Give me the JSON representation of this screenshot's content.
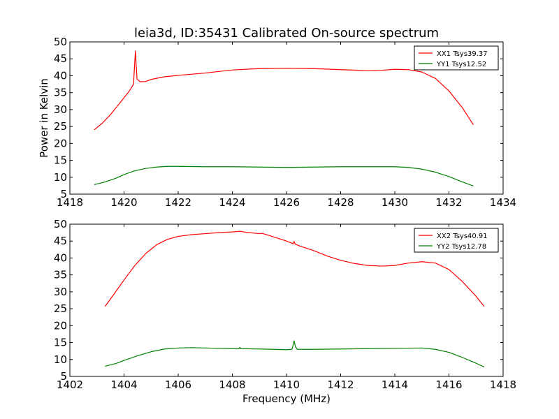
{
  "title": "leia3d, ID:35431 Calibrated On-source spectrum",
  "colors": {
    "xx": "#ff0000",
    "yy": "#007f00"
  },
  "chart_data": [
    {
      "type": "line",
      "xlabel": "",
      "ylabel": "Power in Kelvin",
      "xlim": [
        1418,
        1434
      ],
      "ylim": [
        5,
        50
      ],
      "xticks": [
        "1418",
        "1420",
        "1422",
        "1424",
        "1426",
        "1428",
        "1430",
        "1432",
        "1434"
      ],
      "yticks": [
        "5",
        "10",
        "15",
        "20",
        "25",
        "30",
        "35",
        "40",
        "45",
        "50"
      ],
      "legend_position": "top-right",
      "series": [
        {
          "name": "XX1 Tsys39.37",
          "color": "#ff0000",
          "points": [
            [
              1418.9,
              24.0
            ],
            [
              1419.2,
              26.0
            ],
            [
              1419.5,
              28.5
            ],
            [
              1419.8,
              31.5
            ],
            [
              1420.0,
              33.5
            ],
            [
              1420.2,
              35.5
            ],
            [
              1420.35,
              37.5
            ],
            [
              1420.42,
              47.3
            ],
            [
              1420.48,
              39.0
            ],
            [
              1420.6,
              38.2
            ],
            [
              1420.8,
              38.3
            ],
            [
              1421.0,
              38.9
            ],
            [
              1421.5,
              39.7
            ],
            [
              1422.0,
              40.1
            ],
            [
              1423.0,
              40.8
            ],
            [
              1424.0,
              41.7
            ],
            [
              1425.0,
              42.1
            ],
            [
              1426.0,
              42.2
            ],
            [
              1427.0,
              42.1
            ],
            [
              1428.0,
              41.8
            ],
            [
              1429.0,
              41.5
            ],
            [
              1429.5,
              41.6
            ],
            [
              1430.0,
              41.9
            ],
            [
              1430.5,
              41.8
            ],
            [
              1431.0,
              41.1
            ],
            [
              1431.5,
              39.2
            ],
            [
              1432.0,
              35.5
            ],
            [
              1432.5,
              30.5
            ],
            [
              1432.9,
              25.5
            ]
          ]
        },
        {
          "name": "YY1 Tsys12.52",
          "color": "#007f00",
          "points": [
            [
              1418.9,
              7.8
            ],
            [
              1419.3,
              8.6
            ],
            [
              1419.7,
              9.7
            ],
            [
              1420.0,
              10.8
            ],
            [
              1420.4,
              11.9
            ],
            [
              1420.8,
              12.6
            ],
            [
              1421.2,
              13.0
            ],
            [
              1421.6,
              13.2
            ],
            [
              1422.0,
              13.2
            ],
            [
              1423.0,
              13.1
            ],
            [
              1424.0,
              13.1
            ],
            [
              1425.0,
              13.0
            ],
            [
              1426.0,
              12.9
            ],
            [
              1427.0,
              13.0
            ],
            [
              1428.0,
              13.1
            ],
            [
              1429.0,
              13.1
            ],
            [
              1430.0,
              13.1
            ],
            [
              1430.5,
              12.9
            ],
            [
              1431.0,
              12.4
            ],
            [
              1431.5,
              11.5
            ],
            [
              1432.0,
              10.2
            ],
            [
              1432.5,
              8.6
            ],
            [
              1432.9,
              7.4
            ]
          ]
        }
      ]
    },
    {
      "type": "line",
      "xlabel": "Frequency (MHz)",
      "ylabel": "",
      "xlim": [
        1402,
        1418
      ],
      "ylim": [
        5,
        50
      ],
      "xticks": [
        "1402",
        "1404",
        "1406",
        "1408",
        "1410",
        "1412",
        "1414",
        "1416",
        "1418"
      ],
      "yticks": [
        "5",
        "10",
        "15",
        "20",
        "25",
        "30",
        "35",
        "40",
        "45",
        "50"
      ],
      "legend_position": "top-right",
      "series": [
        {
          "name": "XX2 Tsys40.91",
          "color": "#ff0000",
          "points": [
            [
              1403.3,
              25.7
            ],
            [
              1403.6,
              29.0
            ],
            [
              1404.0,
              33.5
            ],
            [
              1404.4,
              37.8
            ],
            [
              1404.8,
              41.3
            ],
            [
              1405.2,
              43.9
            ],
            [
              1405.6,
              45.5
            ],
            [
              1406.0,
              46.4
            ],
            [
              1406.5,
              46.9
            ],
            [
              1407.0,
              47.2
            ],
            [
              1407.5,
              47.5
            ],
            [
              1408.0,
              47.7
            ],
            [
              1408.3,
              47.9
            ],
            [
              1408.5,
              47.6
            ],
            [
              1409.0,
              47.2
            ],
            [
              1409.1,
              47.3
            ],
            [
              1409.5,
              46.3
            ],
            [
              1410.0,
              45.0
            ],
            [
              1410.25,
              44.2
            ],
            [
              1410.28,
              44.9
            ],
            [
              1410.32,
              44.1
            ],
            [
              1410.5,
              43.5
            ],
            [
              1411.0,
              42.2
            ],
            [
              1411.5,
              40.6
            ],
            [
              1412.0,
              39.3
            ],
            [
              1412.5,
              38.4
            ],
            [
              1413.0,
              37.8
            ],
            [
              1413.5,
              37.6
            ],
            [
              1414.0,
              37.8
            ],
            [
              1414.5,
              38.5
            ],
            [
              1415.0,
              38.9
            ],
            [
              1415.5,
              38.5
            ],
            [
              1416.0,
              36.6
            ],
            [
              1416.5,
              33.0
            ],
            [
              1417.0,
              28.7
            ],
            [
              1417.3,
              25.7
            ]
          ]
        },
        {
          "name": "YY2 Tsys12.78",
          "color": "#007f00",
          "points": [
            [
              1403.3,
              8.0
            ],
            [
              1403.7,
              8.8
            ],
            [
              1404.0,
              9.7
            ],
            [
              1404.5,
              11.1
            ],
            [
              1405.0,
              12.3
            ],
            [
              1405.5,
              13.1
            ],
            [
              1406.0,
              13.4
            ],
            [
              1406.5,
              13.5
            ],
            [
              1407.0,
              13.4
            ],
            [
              1407.5,
              13.3
            ],
            [
              1408.0,
              13.2
            ],
            [
              1408.25,
              13.2
            ],
            [
              1408.28,
              13.6
            ],
            [
              1408.31,
              13.2
            ],
            [
              1409.0,
              13.1
            ],
            [
              1409.5,
              13.0
            ],
            [
              1410.0,
              12.9
            ],
            [
              1410.2,
              13.0
            ],
            [
              1410.25,
              14.4
            ],
            [
              1410.28,
              15.5
            ],
            [
              1410.33,
              13.8
            ],
            [
              1410.4,
              13.0
            ],
            [
              1411.0,
              13.0
            ],
            [
              1412.0,
              13.1
            ],
            [
              1413.0,
              13.2
            ],
            [
              1414.0,
              13.3
            ],
            [
              1415.0,
              13.4
            ],
            [
              1415.5,
              13.0
            ],
            [
              1416.0,
              12.1
            ],
            [
              1416.5,
              10.6
            ],
            [
              1417.0,
              8.9
            ],
            [
              1417.3,
              7.8
            ]
          ]
        }
      ]
    }
  ]
}
